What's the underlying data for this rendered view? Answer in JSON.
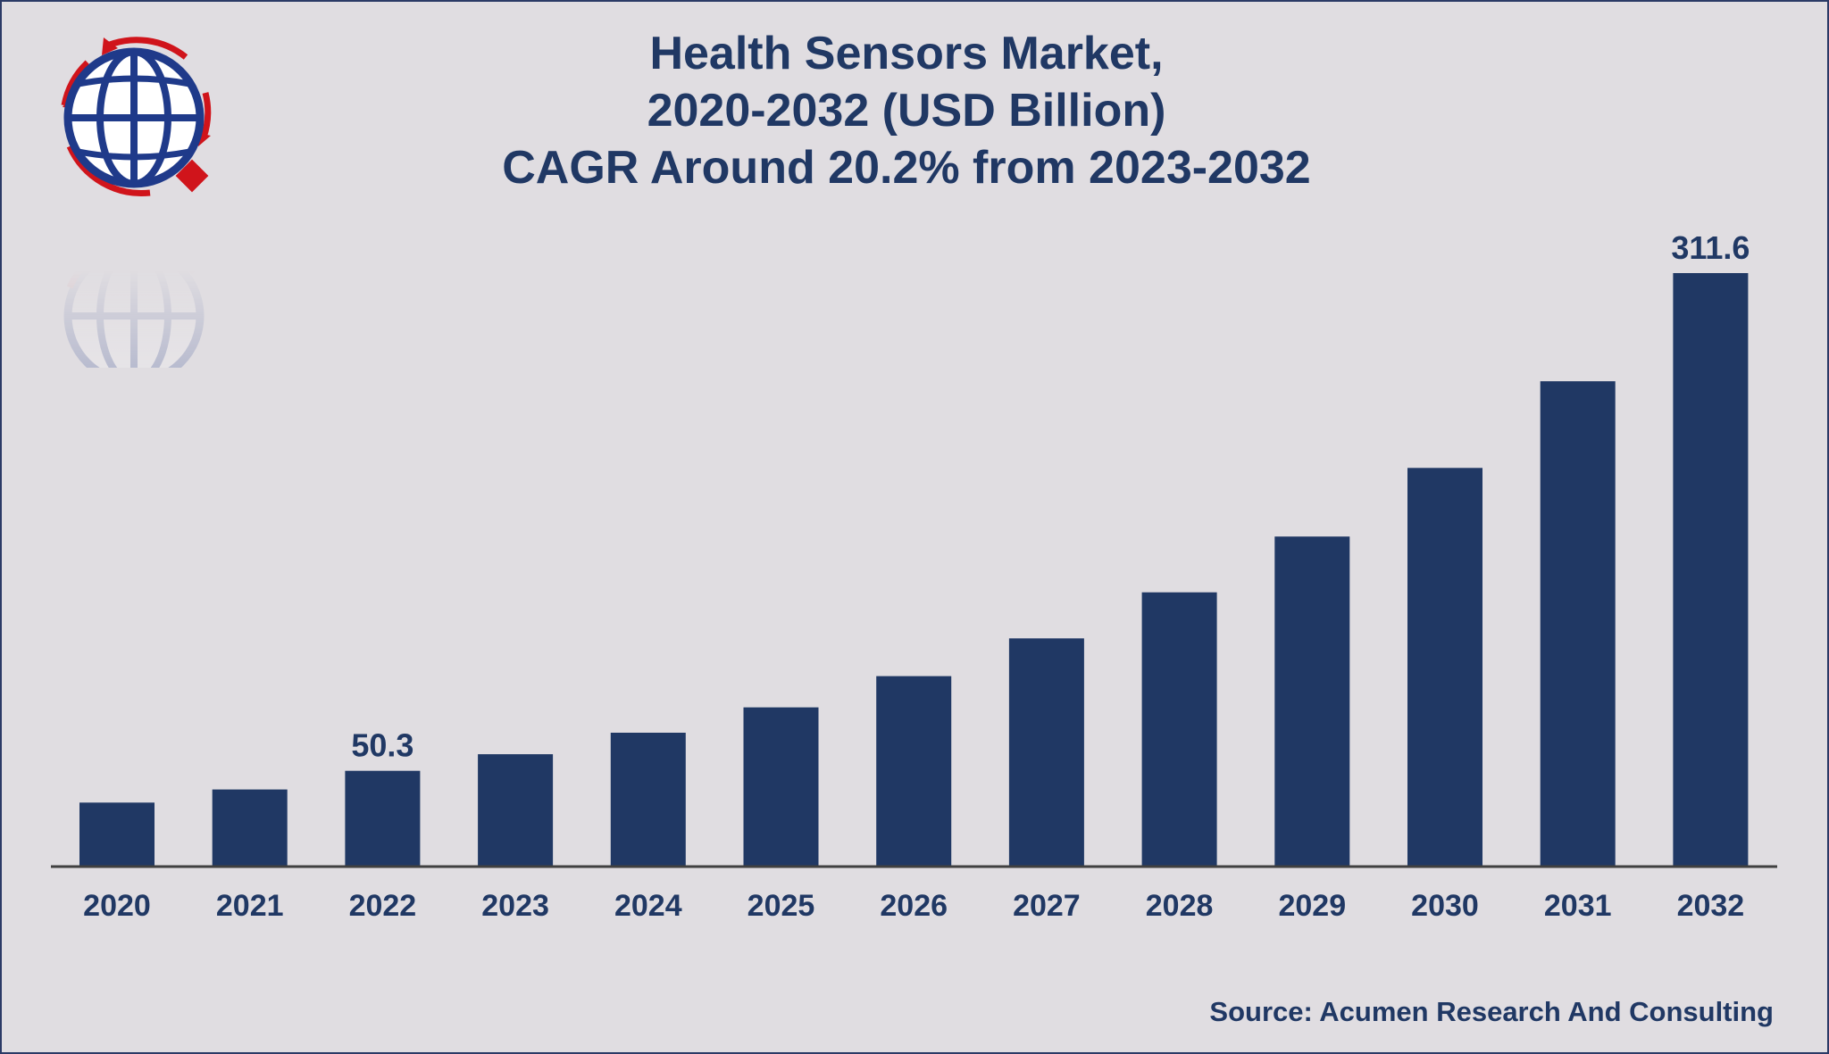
{
  "chart_data": {
    "type": "bar",
    "title_lines": [
      "Health Sensors Market,",
      "2020-2032 (USD Billion)",
      "CAGR Around 20.2% from 2023-2032"
    ],
    "xlabel": "",
    "ylabel": "",
    "categories": [
      "2020",
      "2021",
      "2022",
      "2023",
      "2024",
      "2025",
      "2026",
      "2027",
      "2028",
      "2029",
      "2030",
      "2031",
      "2032"
    ],
    "values": [
      33.6,
      40.5,
      50.3,
      59.0,
      70.3,
      83.6,
      100.0,
      119.8,
      144.0,
      173.3,
      209.3,
      254.8,
      311.6
    ],
    "data_labels": [
      {
        "category": "2022",
        "text": "50.3"
      },
      {
        "category": "2032",
        "text": "311.6"
      }
    ],
    "ylim": [
      0,
      311.6
    ],
    "grid": false,
    "bar_color": "#203864",
    "axis_color": "#404040",
    "text_color": "#203864"
  },
  "source": "Source: Acumen Research And Consulting",
  "logo": {
    "icon": "globe-logo-icon",
    "colors": [
      "#1f3a8a",
      "#d0141b"
    ]
  }
}
